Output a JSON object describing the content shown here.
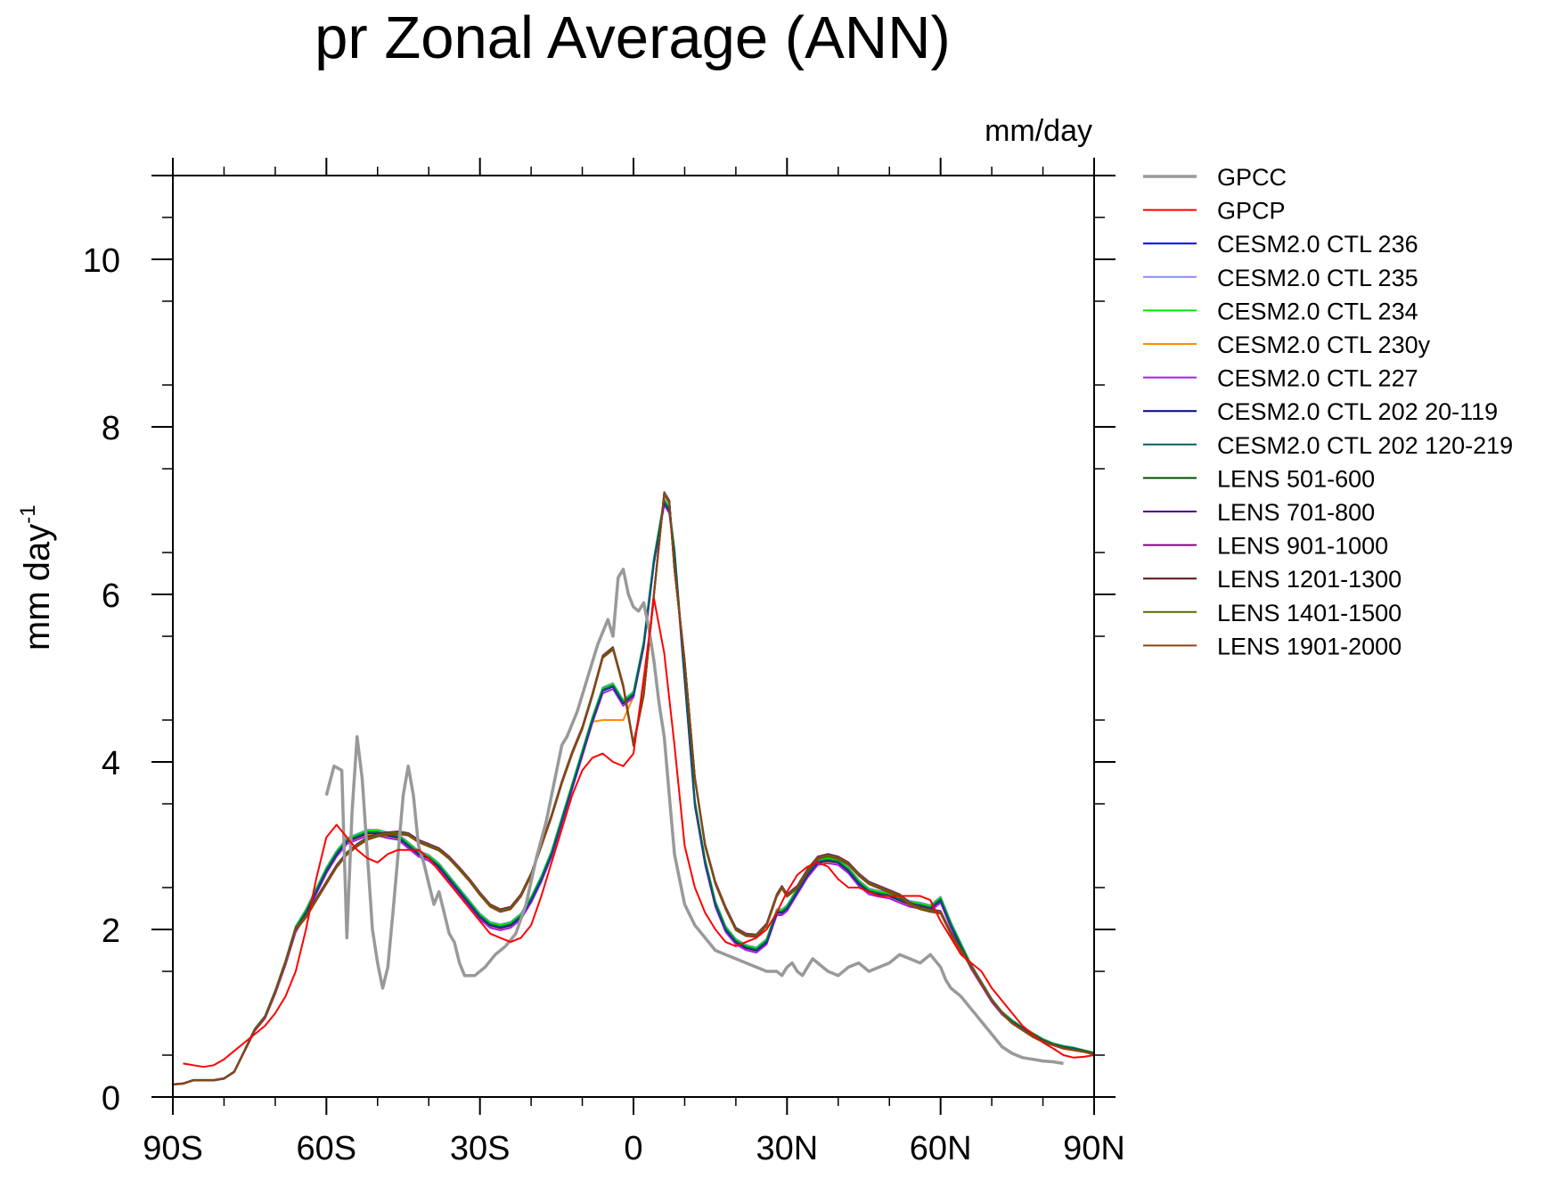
{
  "chart_data": {
    "type": "line",
    "title": "pr Zonal Average (ANN)",
    "units": "mm/day",
    "ylabel_base": "mm day",
    "ylabel_exp": "-1",
    "xlim": [
      -90,
      90
    ],
    "ylim": [
      0,
      11
    ],
    "grid": false,
    "legend_position": "right",
    "x_ticks": [
      {
        "v": -90,
        "label": "90S"
      },
      {
        "v": -60,
        "label": "60S"
      },
      {
        "v": -30,
        "label": "30S"
      },
      {
        "v": 0,
        "label": "0"
      },
      {
        "v": 30,
        "label": "30N"
      },
      {
        "v": 60,
        "label": "60N"
      },
      {
        "v": 90,
        "label": "90N"
      }
    ],
    "y_ticks": [
      {
        "v": 0,
        "label": "0"
      },
      {
        "v": 2,
        "label": "2"
      },
      {
        "v": 4,
        "label": "4"
      },
      {
        "v": 6,
        "label": "6"
      },
      {
        "v": 8,
        "label": "8"
      },
      {
        "v": 10,
        "label": "10"
      }
    ],
    "series": [
      {
        "name": "GPCC",
        "color": "#999999",
        "width": 3.5,
        "x": [
          -60,
          -58.5,
          -57,
          -56,
          -55,
          -54,
          -53,
          -52,
          -51,
          -50,
          -49,
          -48,
          -47,
          -46,
          -45,
          -44,
          -43,
          -42,
          -41,
          -40,
          -39,
          -38,
          -37,
          -36,
          -35,
          -34,
          -33,
          -31,
          -29,
          -27,
          -26,
          -25,
          -23,
          -21,
          -19,
          -17,
          -15,
          -14,
          -13,
          -11,
          -9,
          -7,
          -5,
          -4,
          -3,
          -2,
          -1,
          0,
          1,
          2,
          3,
          4,
          5,
          6,
          7,
          8,
          10,
          12,
          14,
          16,
          18,
          20,
          22,
          24,
          26,
          28,
          29,
          30,
          31,
          32,
          33,
          34,
          35,
          36,
          38,
          40,
          42,
          44,
          46,
          48,
          50,
          52,
          54,
          56,
          58,
          60,
          61,
          62,
          63,
          64,
          66,
          68,
          70,
          72,
          74,
          76,
          78,
          80,
          82,
          84
        ],
        "y": [
          3.6,
          3.95,
          3.9,
          1.9,
          3.4,
          4.3,
          3.8,
          2.9,
          2.0,
          1.6,
          1.3,
          1.55,
          2.2,
          2.9,
          3.6,
          3.95,
          3.6,
          3.0,
          2.8,
          2.55,
          2.3,
          2.45,
          2.2,
          1.95,
          1.85,
          1.6,
          1.45,
          1.45,
          1.55,
          1.7,
          1.75,
          1.8,
          1.95,
          2.3,
          2.85,
          3.3,
          3.9,
          4.2,
          4.3,
          4.6,
          5.0,
          5.4,
          5.7,
          5.5,
          6.2,
          6.3,
          6.0,
          5.85,
          5.8,
          5.9,
          5.6,
          5.2,
          4.7,
          4.3,
          3.6,
          2.9,
          2.3,
          2.05,
          1.9,
          1.75,
          1.7,
          1.65,
          1.6,
          1.55,
          1.5,
          1.5,
          1.45,
          1.55,
          1.6,
          1.5,
          1.45,
          1.55,
          1.65,
          1.6,
          1.5,
          1.45,
          1.55,
          1.6,
          1.5,
          1.55,
          1.6,
          1.7,
          1.65,
          1.6,
          1.7,
          1.55,
          1.4,
          1.3,
          1.25,
          1.2,
          1.05,
          0.9,
          0.75,
          0.6,
          0.52,
          0.47,
          0.45,
          0.43,
          0.42,
          0.4
        ]
      },
      {
        "name": "GPCP",
        "color": "#ff0000",
        "width": 2,
        "x": [
          -88,
          -86,
          -84,
          -82,
          -80,
          -78,
          -76,
          -74,
          -72,
          -70,
          -68,
          -66,
          -64,
          -62,
          -60,
          -58,
          -56,
          -54,
          -52,
          -50,
          -48,
          -46,
          -44,
          -42,
          -40,
          -38,
          -36,
          -34,
          -32,
          -30,
          -28,
          -26,
          -24,
          -22,
          -20,
          -18,
          -16,
          -14,
          -12,
          -10,
          -8,
          -6,
          -4,
          -2,
          0,
          2,
          4,
          6,
          8,
          10,
          12,
          14,
          16,
          18,
          20,
          22,
          24,
          26,
          28,
          30,
          32,
          34,
          36,
          38,
          40,
          42,
          44,
          46,
          48,
          50,
          52,
          54,
          56,
          58,
          60,
          62,
          64,
          66,
          68,
          70,
          72,
          74,
          76,
          78,
          80,
          82,
          84,
          86,
          88,
          90
        ],
        "y": [
          0.4,
          0.38,
          0.36,
          0.38,
          0.45,
          0.55,
          0.65,
          0.75,
          0.85,
          1.0,
          1.2,
          1.5,
          2.0,
          2.6,
          3.1,
          3.25,
          3.1,
          2.95,
          2.85,
          2.8,
          2.9,
          2.95,
          2.95,
          2.95,
          2.85,
          2.7,
          2.55,
          2.4,
          2.25,
          2.1,
          1.95,
          1.9,
          1.85,
          1.9,
          2.05,
          2.4,
          2.8,
          3.2,
          3.6,
          3.9,
          4.05,
          4.1,
          4.0,
          3.95,
          4.1,
          5.0,
          5.95,
          5.3,
          4.2,
          3.0,
          2.5,
          2.2,
          2.0,
          1.85,
          1.8,
          1.85,
          1.9,
          2.0,
          2.2,
          2.45,
          2.65,
          2.75,
          2.8,
          2.75,
          2.6,
          2.5,
          2.5,
          2.45,
          2.4,
          2.4,
          2.4,
          2.4,
          2.4,
          2.35,
          2.1,
          1.9,
          1.7,
          1.6,
          1.5,
          1.3,
          1.15,
          1.0,
          0.85,
          0.75,
          0.65,
          0.58,
          0.5,
          0.47,
          0.48,
          0.5
        ]
      },
      {
        "name": "CESM2.0 CTL 236",
        "color": "#0000ff",
        "width": 2,
        "delta": 0.02
      },
      {
        "name": "CESM2.0 CTL 235",
        "color": "#8c8cff",
        "width": 2,
        "delta": 0.04
      },
      {
        "name": "CESM2.0 CTL 234",
        "color": "#00e600",
        "width": 2,
        "delta": 0.03
      },
      {
        "name": "CESM2.0 CTL 230y",
        "color": "#ff8c00",
        "width": 2,
        "delta": -0.02,
        "itcz_s": 4.5
      },
      {
        "name": "CESM2.0 CTL 227",
        "color": "#a020f0",
        "width": 2,
        "delta": -0.03
      },
      {
        "name": "CESM2.0 CTL 202 20-119",
        "color": "#00008b",
        "width": 2,
        "delta": 0.0
      },
      {
        "name": "CESM2.0 CTL 202 120-219",
        "color": "#006060",
        "width": 2,
        "delta": 0.01
      },
      {
        "name": "LENS 501-600",
        "color": "#004d00",
        "width": 2,
        "delta": 0.0
      },
      {
        "name": "LENS 701-800",
        "color": "#4b0082",
        "width": 2,
        "delta": 0.01
      },
      {
        "name": "LENS 901-1000",
        "color": "#800080",
        "width": 2,
        "delta": 0.02
      },
      {
        "name": "LENS 1201-1300",
        "color": "#5a0f0f",
        "width": 2,
        "delta": 0.0
      },
      {
        "name": "LENS 1401-1500",
        "color": "#556b00",
        "width": 2,
        "delta": 0.01
      },
      {
        "name": "LENS 1901-2000",
        "color": "#8b4513",
        "width": 2,
        "delta": -0.01
      }
    ],
    "model_base": {
      "x": [
        -90,
        -88,
        -86,
        -84,
        -82,
        -80,
        -78,
        -76,
        -74,
        -72,
        -70,
        -68,
        -66,
        -64,
        -62,
        -60,
        -58,
        -56,
        -54,
        -52,
        -50,
        -48,
        -46,
        -44,
        -42,
        -40,
        -38,
        -36,
        -34,
        -32,
        -30,
        -28,
        -26,
        -24,
        -22,
        -20,
        -18,
        -16,
        -14,
        -12,
        -10,
        -8,
        -6,
        -4,
        -2,
        0,
        2,
        4,
        6,
        7,
        8,
        10,
        12,
        14,
        16,
        18,
        20,
        22,
        24,
        26,
        28,
        29,
        30,
        32,
        34,
        36,
        38,
        40,
        42,
        44,
        46,
        48,
        50,
        52,
        54,
        56,
        58,
        60,
        62,
        64,
        66,
        68,
        70,
        72,
        74,
        76,
        78,
        80,
        82,
        84,
        86,
        88,
        90
      ],
      "cesm": [
        0.15,
        0.16,
        0.2,
        0.2,
        0.2,
        0.22,
        0.3,
        0.55,
        0.8,
        0.95,
        1.25,
        1.6,
        2.0,
        2.2,
        2.45,
        2.7,
        2.9,
        3.05,
        3.1,
        3.15,
        3.15,
        3.12,
        3.1,
        3.0,
        2.9,
        2.85,
        2.75,
        2.6,
        2.45,
        2.3,
        2.15,
        2.05,
        2.02,
        2.05,
        2.15,
        2.35,
        2.6,
        2.9,
        3.3,
        3.7,
        4.1,
        4.5,
        4.85,
        4.9,
        4.7,
        4.8,
        5.4,
        6.4,
        7.1,
        7.0,
        6.5,
        5.0,
        3.5,
        2.8,
        2.3,
        2.0,
        1.85,
        1.78,
        1.75,
        1.85,
        2.2,
        2.2,
        2.25,
        2.45,
        2.65,
        2.8,
        2.82,
        2.8,
        2.7,
        2.55,
        2.45,
        2.42,
        2.4,
        2.35,
        2.3,
        2.28,
        2.25,
        2.35,
        2.05,
        1.8,
        1.55,
        1.35,
        1.15,
        1.0,
        0.9,
        0.82,
        0.75,
        0.68,
        0.63,
        0.6,
        0.58,
        0.55,
        0.52
      ],
      "lens": [
        0.15,
        0.16,
        0.2,
        0.2,
        0.2,
        0.22,
        0.3,
        0.55,
        0.8,
        0.95,
        1.25,
        1.6,
        2.0,
        2.15,
        2.35,
        2.55,
        2.75,
        2.9,
        3.0,
        3.08,
        3.12,
        3.14,
        3.15,
        3.13,
        3.05,
        3.0,
        2.95,
        2.85,
        2.72,
        2.58,
        2.42,
        2.28,
        2.22,
        2.25,
        2.4,
        2.65,
        3.0,
        3.35,
        3.75,
        4.1,
        4.4,
        4.8,
        5.25,
        5.35,
        4.9,
        4.2,
        4.8,
        6.0,
        7.2,
        7.1,
        6.3,
        5.2,
        3.8,
        3.0,
        2.55,
        2.25,
        2.0,
        1.93,
        1.92,
        2.05,
        2.4,
        2.5,
        2.4,
        2.5,
        2.7,
        2.85,
        2.88,
        2.85,
        2.78,
        2.65,
        2.55,
        2.5,
        2.45,
        2.4,
        2.3,
        2.25,
        2.22,
        2.2,
        1.95,
        1.75,
        1.55,
        1.35,
        1.15,
        1.0,
        0.88,
        0.8,
        0.72,
        0.66,
        0.62,
        0.58,
        0.56,
        0.54,
        0.51
      ]
    }
  }
}
